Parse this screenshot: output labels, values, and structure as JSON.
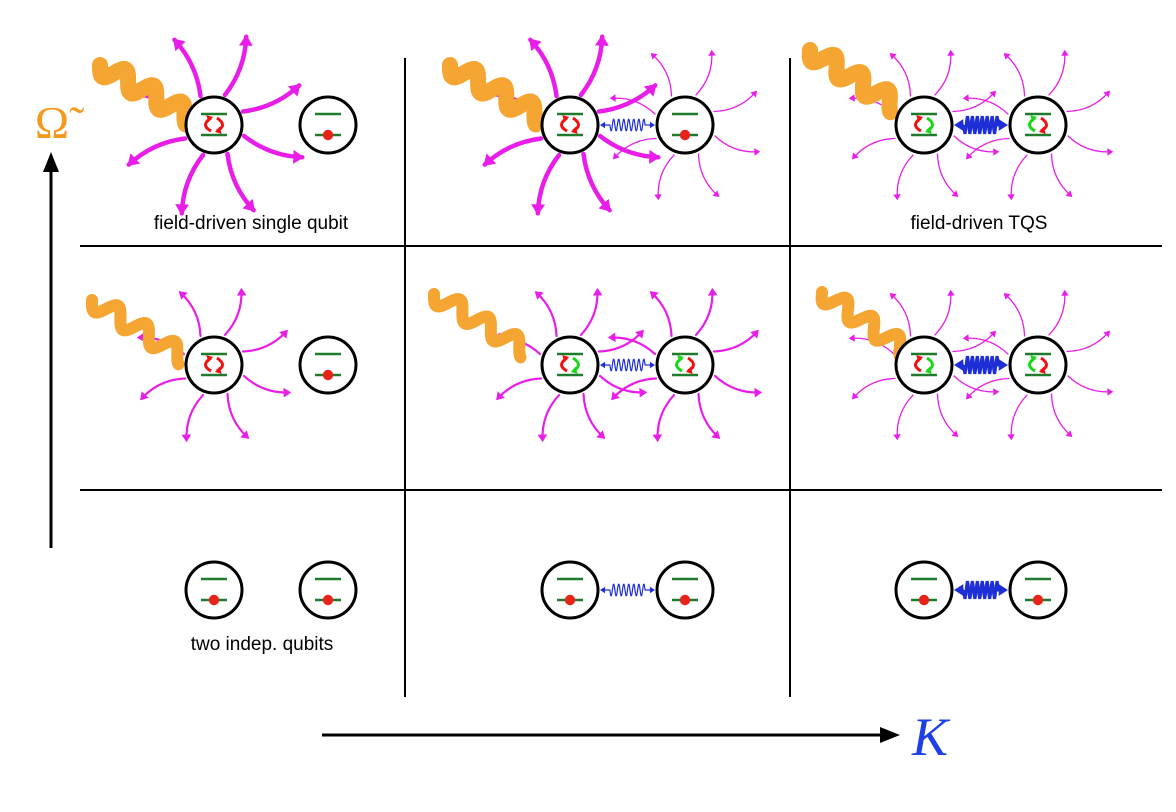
{
  "axes": {
    "y_label": "Ω̃",
    "x_label": "K",
    "y_color": "#f39a1e",
    "x_color": "#1f3fe6"
  },
  "labels": {
    "top_left": "field-driven single qubit",
    "top_right": "field-driven TQS",
    "bottom_left": "two indep. qubits"
  },
  "colors": {
    "photon": "#f5a532",
    "emission": "#e81ee8",
    "coupling": "#1f2fd8",
    "level": "#1f7a2e",
    "electron": "#e8231a",
    "arrow_red": "#ef1010",
    "arrow_green": "#18d818",
    "grid": "#000000"
  },
  "grid": {
    "rows": 3,
    "cols": 3
  },
  "panels": [
    {
      "row": "top",
      "col": "left",
      "photon": "strong",
      "emission": "thick",
      "coupling": "none",
      "q1": "driven-red",
      "q2": "ground"
    },
    {
      "row": "top",
      "col": "mid",
      "photon": "strong",
      "emission": "thick",
      "coupling": "weak",
      "q1": "driven-red",
      "q2": "ground"
    },
    {
      "row": "top",
      "col": "right",
      "photon": "strong",
      "emission": "thin",
      "coupling": "strong",
      "q1": "driven-red-green",
      "q2": "driven-green-red"
    },
    {
      "row": "mid",
      "col": "left",
      "photon": "medium",
      "emission": "medium",
      "coupling": "none",
      "q1": "driven-red",
      "q2": "ground"
    },
    {
      "row": "mid",
      "col": "mid",
      "photon": "medium",
      "emission": "medium",
      "coupling": "weak",
      "q1": "driven-red-green",
      "q2": "driven-green-red"
    },
    {
      "row": "mid",
      "col": "right",
      "photon": "medium",
      "emission": "thin",
      "coupling": "strong",
      "q1": "driven-red-green",
      "q2": "driven-green-red"
    },
    {
      "row": "bot",
      "col": "left",
      "photon": "none",
      "emission": "none",
      "coupling": "none",
      "q1": "ground",
      "q2": "ground"
    },
    {
      "row": "bot",
      "col": "mid",
      "photon": "none",
      "emission": "none",
      "coupling": "weak",
      "q1": "ground",
      "q2": "ground"
    },
    {
      "row": "bot",
      "col": "right",
      "photon": "none",
      "emission": "none",
      "coupling": "strong",
      "q1": "ground",
      "q2": "ground"
    }
  ]
}
